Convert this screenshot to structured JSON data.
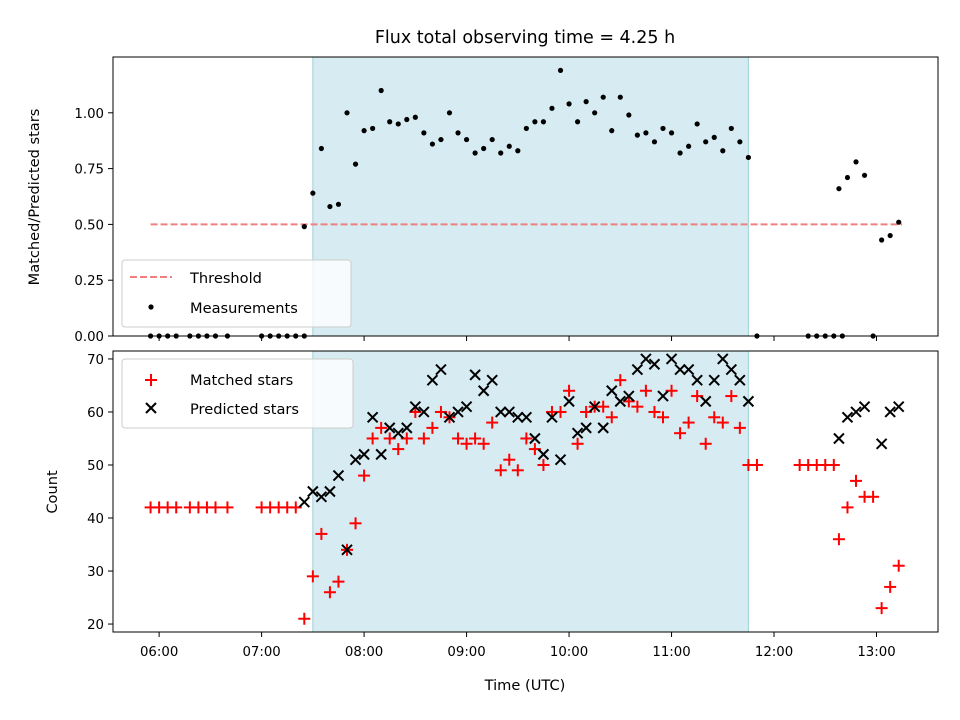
{
  "title": "Flux total observing time = 4.25 h",
  "xlabel": "Time (UTC)",
  "x_ticks": [
    "06:00",
    "07:00",
    "08:00",
    "09:00",
    "10:00",
    "11:00",
    "12:00",
    "13:00"
  ],
  "colors": {
    "threshold": "#f08080",
    "measure": "#000000",
    "matched": "#ff0000",
    "predicted": "#000000",
    "band": "#add8e6"
  },
  "chart_data": [
    {
      "type": "scatter",
      "ylabel": "Matched/Predicted stars",
      "xlim": [
        "05:33",
        "13:36"
      ],
      "ylim": [
        0,
        1.25
      ],
      "yticks": [
        "0.00",
        "0.25",
        "0.50",
        "0.75",
        "1.00"
      ],
      "highlight_band": [
        "07:30",
        "11:45"
      ],
      "legend": {
        "position": "lower-left",
        "entries": [
          "Threshold",
          "Measurements"
        ]
      },
      "threshold": {
        "name": "Threshold",
        "y": 0.5,
        "x_range": [
          "05:55",
          "13:15"
        ]
      },
      "series": [
        {
          "name": "Measurements",
          "points": [
            [
              "05:55",
              0
            ],
            [
              "06:00",
              0
            ],
            [
              "06:05",
              0
            ],
            [
              "06:10",
              0
            ],
            [
              "06:18",
              0
            ],
            [
              "06:23",
              0
            ],
            [
              "06:28",
              0
            ],
            [
              "06:33",
              0
            ],
            [
              "06:40",
              0
            ],
            [
              "07:00",
              0
            ],
            [
              "07:05",
              0
            ],
            [
              "07:10",
              0
            ],
            [
              "07:15",
              0
            ],
            [
              "07:20",
              0
            ],
            [
              "07:25",
              0
            ],
            [
              "07:25",
              0.49
            ],
            [
              "07:30",
              0.64
            ],
            [
              "07:35",
              0.84
            ],
            [
              "07:40",
              0.58
            ],
            [
              "07:45",
              0.59
            ],
            [
              "07:50",
              1.0
            ],
            [
              "07:55",
              0.77
            ],
            [
              "08:00",
              0.92
            ],
            [
              "08:05",
              0.93
            ],
            [
              "08:10",
              1.1
            ],
            [
              "08:15",
              0.96
            ],
            [
              "08:20",
              0.95
            ],
            [
              "08:25",
              0.97
            ],
            [
              "08:30",
              0.98
            ],
            [
              "08:35",
              0.91
            ],
            [
              "08:40",
              0.86
            ],
            [
              "08:45",
              0.88
            ],
            [
              "08:50",
              1.0
            ],
            [
              "08:55",
              0.91
            ],
            [
              "09:00",
              0.88
            ],
            [
              "09:05",
              0.82
            ],
            [
              "09:10",
              0.84
            ],
            [
              "09:15",
              0.88
            ],
            [
              "09:20",
              0.82
            ],
            [
              "09:25",
              0.85
            ],
            [
              "09:30",
              0.83
            ],
            [
              "09:35",
              0.93
            ],
            [
              "09:40",
              0.96
            ],
            [
              "09:45",
              0.96
            ],
            [
              "09:50",
              1.02
            ],
            [
              "09:55",
              1.19
            ],
            [
              "10:00",
              1.04
            ],
            [
              "10:05",
              0.96
            ],
            [
              "10:10",
              1.05
            ],
            [
              "10:15",
              1.0
            ],
            [
              "10:20",
              1.07
            ],
            [
              "10:25",
              0.92
            ],
            [
              "10:30",
              1.07
            ],
            [
              "10:35",
              0.99
            ],
            [
              "10:40",
              0.9
            ],
            [
              "10:45",
              0.91
            ],
            [
              "10:50",
              0.87
            ],
            [
              "10:55",
              0.93
            ],
            [
              "11:00",
              0.91
            ],
            [
              "11:05",
              0.82
            ],
            [
              "11:10",
              0.85
            ],
            [
              "11:15",
              0.95
            ],
            [
              "11:20",
              0.87
            ],
            [
              "11:25",
              0.89
            ],
            [
              "11:30",
              0.83
            ],
            [
              "11:35",
              0.93
            ],
            [
              "11:40",
              0.87
            ],
            [
              "11:45",
              0.8
            ],
            [
              "11:50",
              0
            ],
            [
              "12:20",
              0
            ],
            [
              "12:25",
              0
            ],
            [
              "12:30",
              0
            ],
            [
              "12:35",
              0
            ],
            [
              "12:40",
              0
            ],
            [
              "12:58",
              0
            ],
            [
              "12:38",
              0.66
            ],
            [
              "12:43",
              0.71
            ],
            [
              "12:48",
              0.78
            ],
            [
              "12:53",
              0.72
            ],
            [
              "13:03",
              0.43
            ],
            [
              "13:08",
              0.45
            ],
            [
              "13:13",
              0.51
            ]
          ]
        }
      ]
    },
    {
      "type": "scatter",
      "ylabel": "Count",
      "xlabel": "Time (UTC)",
      "xlim": [
        "05:33",
        "13:36"
      ],
      "ylim": [
        18.5,
        71.5
      ],
      "yticks": [
        "20",
        "30",
        "40",
        "50",
        "60",
        "70"
      ],
      "highlight_band": [
        "07:30",
        "11:45"
      ],
      "legend": {
        "position": "upper-left",
        "entries": [
          "Matched stars",
          "Predicted stars"
        ]
      },
      "series": [
        {
          "name": "Matched stars",
          "marker": "+",
          "points": [
            [
              "05:55",
              42
            ],
            [
              "06:00",
              42
            ],
            [
              "06:05",
              42
            ],
            [
              "06:10",
              42
            ],
            [
              "06:18",
              42
            ],
            [
              "06:23",
              42
            ],
            [
              "06:28",
              42
            ],
            [
              "06:33",
              42
            ],
            [
              "06:40",
              42
            ],
            [
              "07:00",
              42
            ],
            [
              "07:05",
              42
            ],
            [
              "07:10",
              42
            ],
            [
              "07:15",
              42
            ],
            [
              "07:20",
              42
            ],
            [
              "07:25",
              21
            ],
            [
              "07:30",
              29
            ],
            [
              "07:35",
              37
            ],
            [
              "07:40",
              26
            ],
            [
              "07:45",
              28
            ],
            [
              "07:50",
              34
            ],
            [
              "07:55",
              39
            ],
            [
              "08:00",
              48
            ],
            [
              "08:05",
              55
            ],
            [
              "08:10",
              57
            ],
            [
              "08:15",
              55
            ],
            [
              "08:20",
              53
            ],
            [
              "08:25",
              55
            ],
            [
              "08:30",
              60
            ],
            [
              "08:35",
              55
            ],
            [
              "08:40",
              57
            ],
            [
              "08:45",
              60
            ],
            [
              "08:50",
              59
            ],
            [
              "08:55",
              55
            ],
            [
              "09:00",
              54
            ],
            [
              "09:05",
              55
            ],
            [
              "09:10",
              54
            ],
            [
              "09:15",
              58
            ],
            [
              "09:20",
              49
            ],
            [
              "09:25",
              51
            ],
            [
              "09:30",
              49
            ],
            [
              "09:35",
              55
            ],
            [
              "09:40",
              53
            ],
            [
              "09:45",
              50
            ],
            [
              "09:50",
              60
            ],
            [
              "09:55",
              60
            ],
            [
              "10:00",
              64
            ],
            [
              "10:05",
              54
            ],
            [
              "10:10",
              60
            ],
            [
              "10:15",
              61
            ],
            [
              "10:20",
              61
            ],
            [
              "10:25",
              59
            ],
            [
              "10:30",
              66
            ],
            [
              "10:35",
              62
            ],
            [
              "10:40",
              61
            ],
            [
              "10:45",
              64
            ],
            [
              "10:50",
              60
            ],
            [
              "10:55",
              59
            ],
            [
              "11:00",
              64
            ],
            [
              "11:05",
              56
            ],
            [
              "11:10",
              58
            ],
            [
              "11:15",
              63
            ],
            [
              "11:20",
              54
            ],
            [
              "11:25",
              59
            ],
            [
              "11:30",
              58
            ],
            [
              "11:35",
              63
            ],
            [
              "11:40",
              57
            ],
            [
              "11:45",
              50
            ],
            [
              "11:50",
              50
            ],
            [
              "12:15",
              50
            ],
            [
              "12:20",
              50
            ],
            [
              "12:25",
              50
            ],
            [
              "12:30",
              50
            ],
            [
              "12:35",
              50
            ],
            [
              "12:38",
              36
            ],
            [
              "12:43",
              42
            ],
            [
              "12:48",
              47
            ],
            [
              "12:53",
              44
            ],
            [
              "12:58",
              44
            ],
            [
              "13:03",
              23
            ],
            [
              "13:08",
              27
            ],
            [
              "13:13",
              31
            ]
          ]
        },
        {
          "name": "Predicted stars",
          "marker": "x",
          "points": [
            [
              "07:25",
              43
            ],
            [
              "07:30",
              45
            ],
            [
              "07:35",
              44
            ],
            [
              "07:40",
              45
            ],
            [
              "07:45",
              48
            ],
            [
              "07:50",
              34
            ],
            [
              "07:55",
              51
            ],
            [
              "08:00",
              52
            ],
            [
              "08:05",
              59
            ],
            [
              "08:10",
              52
            ],
            [
              "08:15",
              57
            ],
            [
              "08:20",
              56
            ],
            [
              "08:25",
              57
            ],
            [
              "08:30",
              61
            ],
            [
              "08:35",
              60
            ],
            [
              "08:40",
              66
            ],
            [
              "08:45",
              68
            ],
            [
              "08:50",
              59
            ],
            [
              "08:55",
              60
            ],
            [
              "09:00",
              61
            ],
            [
              "09:05",
              67
            ],
            [
              "09:10",
              64
            ],
            [
              "09:15",
              66
            ],
            [
              "09:20",
              60
            ],
            [
              "09:25",
              60
            ],
            [
              "09:30",
              59
            ],
            [
              "09:35",
              59
            ],
            [
              "09:40",
              55
            ],
            [
              "09:45",
              52
            ],
            [
              "09:50",
              59
            ],
            [
              "09:55",
              51
            ],
            [
              "10:00",
              62
            ],
            [
              "10:05",
              56
            ],
            [
              "10:10",
              57
            ],
            [
              "10:15",
              61
            ],
            [
              "10:20",
              57
            ],
            [
              "10:25",
              64
            ],
            [
              "10:30",
              62
            ],
            [
              "10:35",
              63
            ],
            [
              "10:40",
              68
            ],
            [
              "10:45",
              70
            ],
            [
              "10:50",
              69
            ],
            [
              "10:55",
              63
            ],
            [
              "11:00",
              70
            ],
            [
              "11:05",
              68
            ],
            [
              "11:10",
              68
            ],
            [
              "11:15",
              66
            ],
            [
              "11:20",
              62
            ],
            [
              "11:25",
              66
            ],
            [
              "11:30",
              70
            ],
            [
              "11:35",
              68
            ],
            [
              "11:40",
              66
            ],
            [
              "11:45",
              62
            ],
            [
              "12:38",
              55
            ],
            [
              "12:43",
              59
            ],
            [
              "12:48",
              60
            ],
            [
              "12:53",
              61
            ],
            [
              "13:03",
              54
            ],
            [
              "13:08",
              60
            ],
            [
              "13:13",
              61
            ]
          ]
        }
      ]
    }
  ]
}
